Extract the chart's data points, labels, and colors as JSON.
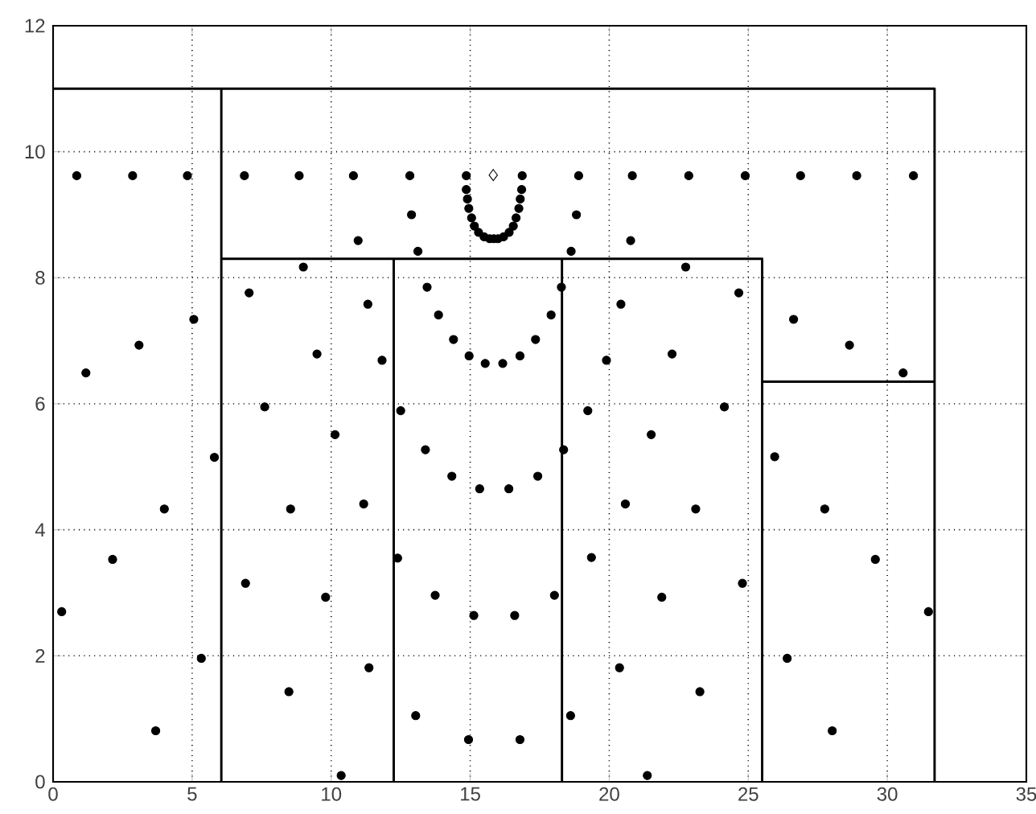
{
  "chart_data": {
    "type": "scatter",
    "xlim": [
      0,
      35
    ],
    "ylim": [
      0,
      12
    ],
    "xticks": [
      0,
      5,
      10,
      15,
      20,
      25,
      30,
      35
    ],
    "yticks": [
      0,
      2,
      4,
      6,
      8,
      10,
      12
    ],
    "grid": true,
    "series": [
      {
        "type": "line",
        "color": "#000000",
        "marker": "none",
        "line_style": "solid",
        "x": [
          6.05,
          6.05,
          31.7,
          31.7,
          null,
          0,
          6.05,
          null,
          6.05,
          25.5,
          25.5,
          null,
          12.25,
          12.25,
          null,
          18.3,
          18.3,
          null,
          25.5,
          31.7
        ],
        "values": [
          0,
          11,
          11,
          0,
          null,
          11,
          11,
          null,
          8.3,
          8.3,
          0,
          null,
          0,
          8.3,
          null,
          0,
          8.3,
          null,
          6.35,
          6.35
        ]
      },
      {
        "color": "#000000",
        "marker": "circle",
        "x": [
          0.85,
          2.86,
          4.83,
          6.88,
          8.85,
          10.8,
          12.83,
          14.86,
          16.87,
          18.9,
          20.83,
          22.86,
          24.89,
          26.88,
          28.9,
          30.94,
          14.86,
          14.9,
          14.95,
          15.05,
          15.15,
          15.3,
          15.5,
          15.7,
          15.85,
          16.0,
          16.2,
          16.4,
          16.55,
          16.65,
          16.75,
          16.8,
          16.85,
          10.97,
          12.89,
          13.12,
          9.0,
          7.05,
          11.32,
          9.49,
          11.83,
          7.61,
          12.5,
          1.18,
          3.09,
          5.06,
          13.45,
          13.86,
          14.4,
          14.96,
          15.54,
          16.17,
          16.79,
          17.35,
          17.91,
          18.28,
          18.63,
          18.82,
          20.77,
          22.75,
          20.42,
          24.66,
          22.26,
          19.9,
          26.63,
          28.64,
          30.57,
          19.23,
          24.14,
          0.31,
          2.14,
          4.0,
          5.8,
          5.33,
          3.69,
          10.14,
          8.54,
          11.17,
          6.92,
          9.8,
          11.36,
          8.48,
          10.36,
          13.39,
          14.34,
          15.34,
          16.39,
          12.39,
          13.74,
          15.13,
          16.6,
          13.04,
          14.94,
          16.79,
          17.43,
          18.36,
          21.51,
          20.58,
          23.11,
          25.95,
          27.75,
          29.57,
          31.48,
          19.36,
          18.03,
          21.89,
          24.79,
          20.37,
          23.26,
          26.4,
          18.61,
          28.02,
          21.37
        ],
        "values": [
          9.62,
          9.62,
          9.62,
          9.62,
          9.62,
          9.62,
          9.62,
          9.62,
          9.62,
          9.62,
          9.62,
          9.62,
          9.62,
          9.62,
          9.62,
          9.62,
          9.4,
          9.25,
          9.1,
          8.95,
          8.82,
          8.72,
          8.65,
          8.62,
          8.62,
          8.62,
          8.65,
          8.72,
          8.82,
          8.95,
          9.1,
          9.25,
          9.4,
          8.59,
          9.0,
          8.42,
          8.17,
          7.76,
          7.58,
          6.79,
          6.69,
          5.95,
          5.89,
          6.49,
          6.93,
          7.34,
          7.85,
          7.41,
          7.02,
          6.76,
          6.64,
          6.64,
          6.76,
          7.02,
          7.41,
          7.85,
          8.42,
          9.0,
          8.59,
          8.17,
          7.58,
          7.76,
          6.79,
          6.69,
          7.34,
          6.93,
          6.49,
          5.89,
          5.95,
          2.7,
          3.53,
          4.33,
          5.15,
          1.96,
          0.81,
          5.51,
          4.33,
          4.41,
          3.15,
          2.93,
          1.81,
          1.43,
          0.1,
          5.27,
          4.85,
          4.65,
          4.65,
          3.55,
          2.96,
          2.64,
          2.64,
          1.05,
          0.67,
          0.67,
          4.85,
          5.27,
          5.51,
          4.41,
          4.33,
          5.16,
          4.33,
          3.53,
          2.7,
          3.56,
          2.96,
          2.93,
          3.15,
          1.81,
          1.43,
          1.96,
          1.05,
          0.81,
          0.1
        ]
      },
      {
        "color": "#000000",
        "marker": "diamond",
        "x": [
          15.83
        ],
        "values": [
          9.63
        ]
      }
    ]
  }
}
